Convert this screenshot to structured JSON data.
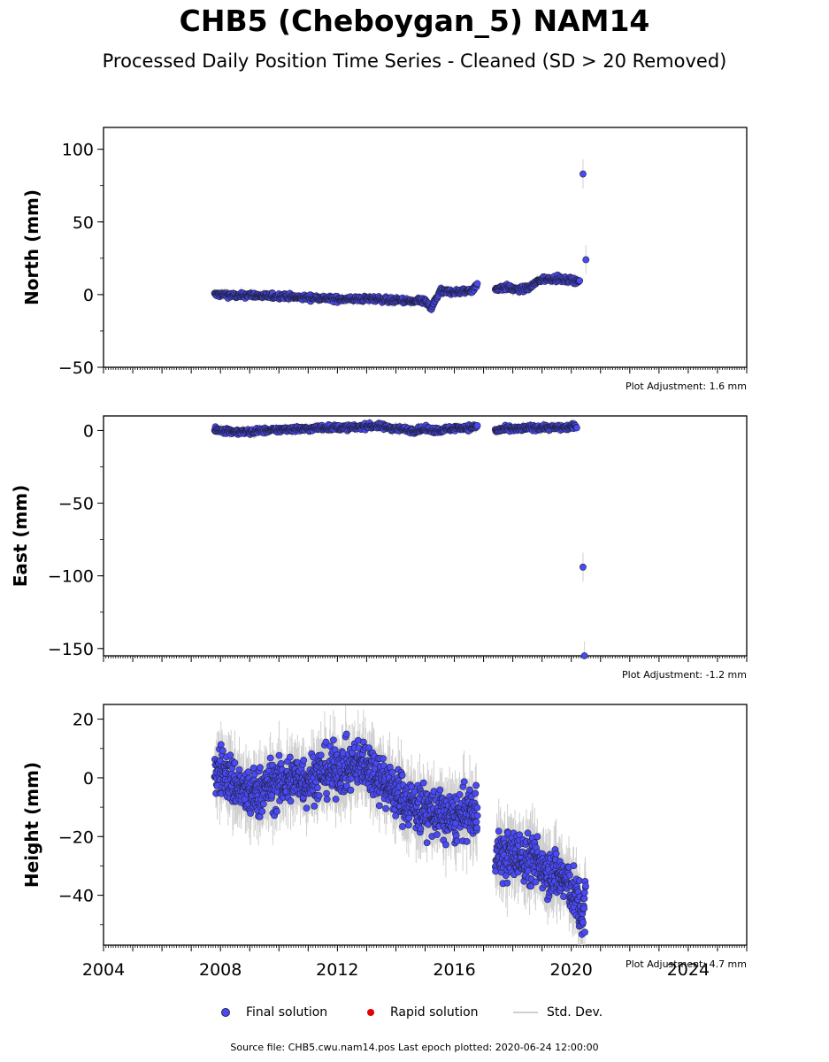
{
  "title": "CHB5 (Cheboygan_5) NAM14",
  "subtitle": "Processed Daily Position Time Series - Cleaned (SD > 20 Removed)",
  "colors": {
    "final": "#4a4af5",
    "rapid": "#e00000",
    "stddev": "#cfcfcf",
    "edge": "#222244"
  },
  "legend": {
    "final_label": "Final solution",
    "rapid_label": "Rapid solution",
    "std_label": "Std. Dev."
  },
  "source": "Source file: CHB5.cwu.nam14.pos  Last epoch plotted: 2020-06-24 12:00:00",
  "chart_data": [
    {
      "type": "scatter",
      "ylabel": "North (mm)",
      "adjustment": "Plot Adjustment: 1.6 mm",
      "xlim": [
        2004,
        2026
      ],
      "ylim": [
        -50,
        115
      ],
      "yticks": [
        100,
        50,
        0,
        -50
      ],
      "ytick_labels": [
        "100",
        "50",
        "0",
        "−50"
      ],
      "series": [
        {
          "x": [
            2007.8,
            2008.2,
            2008.6,
            2009.0,
            2009.4,
            2009.8,
            2010.2,
            2010.6,
            2011.0,
            2011.4,
            2011.8,
            2012.2,
            2012.6,
            2013.0,
            2013.4,
            2013.8,
            2014.2,
            2014.6,
            2015.0,
            2015.2,
            2015.5,
            2015.8,
            2016.2,
            2016.6,
            2016.8,
            2017.4,
            2017.8,
            2018.2,
            2018.6,
            2018.9,
            2019.2,
            2019.5,
            2019.8,
            2020.1,
            2020.3,
            2020.4,
            2020.5
          ],
          "y": [
            0,
            0,
            -1,
            0,
            -1,
            -1,
            -1,
            -2,
            -2,
            -2,
            -3,
            -3,
            -3,
            -3,
            -3,
            -4,
            -4,
            -5,
            -4,
            -10,
            2,
            2,
            2,
            3,
            7,
            4,
            5,
            3,
            5,
            10,
            11,
            11,
            10,
            10,
            9,
            83,
            24
          ]
        }
      ]
    },
    {
      "type": "scatter",
      "ylabel": "East (mm)",
      "adjustment": "Plot Adjustment: -1.2 mm",
      "xlim": [
        2004,
        2026
      ],
      "ylim": [
        -155,
        10
      ],
      "yticks": [
        0,
        -50,
        -100,
        -150
      ],
      "ytick_labels": [
        "0",
        "−50",
        "−100",
        "−150"
      ],
      "series": [
        {
          "x": [
            2007.8,
            2008.2,
            2008.6,
            2009.0,
            2009.4,
            2009.8,
            2010.2,
            2010.6,
            2011.0,
            2011.4,
            2011.8,
            2012.2,
            2012.6,
            2013.0,
            2013.4,
            2013.8,
            2014.2,
            2014.6,
            2015.0,
            2015.4,
            2015.8,
            2016.2,
            2016.6,
            2016.8,
            2017.4,
            2017.8,
            2018.2,
            2018.6,
            2019.0,
            2019.4,
            2019.8,
            2020.2,
            2020.4,
            2020.45
          ],
          "y": [
            0,
            0,
            -1,
            -1,
            0,
            0,
            1,
            1,
            1,
            2,
            2,
            2,
            2,
            3,
            3,
            2,
            1,
            0,
            1,
            0,
            1,
            2,
            2,
            3,
            0,
            1,
            1,
            2,
            2,
            2,
            2,
            3,
            -94,
            -155
          ]
        }
      ]
    },
    {
      "type": "scatter",
      "ylabel": "Height (mm)",
      "adjustment": "Plot Adjustment: 4.7 mm",
      "xlim": [
        2004,
        2026
      ],
      "ylim": [
        -57,
        25
      ],
      "yticks": [
        20,
        0,
        -20,
        -40
      ],
      "ytick_labels": [
        "20",
        "0",
        "−20",
        "−40"
      ],
      "series": [
        {
          "x": [
            2007.8,
            2008.0,
            2008.3,
            2008.6,
            2009.0,
            2009.3,
            2009.6,
            2010.0,
            2010.3,
            2010.6,
            2011.0,
            2011.3,
            2011.6,
            2012.0,
            2012.3,
            2012.6,
            2012.9,
            2013.2,
            2013.5,
            2013.8,
            2014.1,
            2014.4,
            2014.7,
            2015.0,
            2015.3,
            2015.6,
            2015.9,
            2016.2,
            2016.5,
            2016.8,
            2017.4,
            2017.7,
            2018.0,
            2018.3,
            2018.6,
            2018.9,
            2019.2,
            2019.5,
            2019.8,
            2020.0,
            2020.2,
            2020.4,
            2020.5
          ],
          "y": [
            2,
            3,
            0,
            -3,
            -6,
            -5,
            -3,
            -2,
            -1,
            0,
            -1,
            1,
            2,
            3,
            3,
            4,
            5,
            3,
            0,
            -3,
            -6,
            -8,
            -10,
            -11,
            -12,
            -13,
            -14,
            -13,
            -12,
            -12,
            -25,
            -27,
            -26,
            -27,
            -28,
            -29,
            -31,
            -33,
            -35,
            -38,
            -42,
            -48,
            -40
          ]
        }
      ]
    }
  ],
  "x_tick_labels": [
    "2004",
    "2008",
    "2012",
    "2016",
    "2020",
    "2024"
  ]
}
